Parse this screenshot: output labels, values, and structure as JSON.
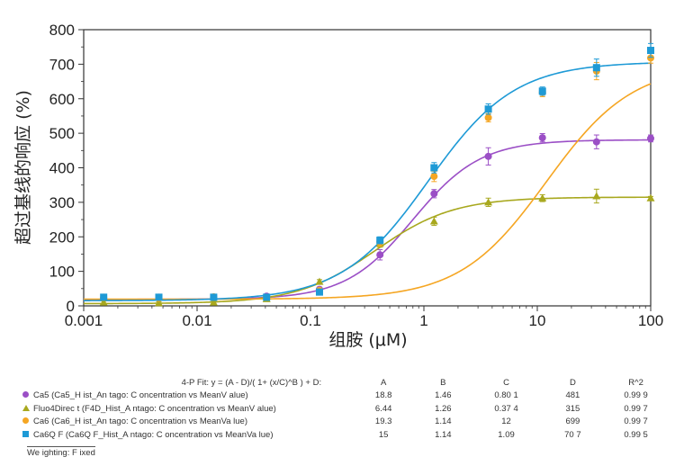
{
  "chart_data": {
    "type": "scatter",
    "xlabel": "组胺 (μM)",
    "ylabel": "超过基线的响应 (%)",
    "xscale": "log",
    "xlim": [
      0.001,
      100
    ],
    "ylim": [
      0,
      800
    ],
    "x_ticks": [
      "0.001",
      "0.01",
      "0.1",
      "1",
      "10",
      "100"
    ],
    "y_ticks": [
      "0",
      "100",
      "200",
      "300",
      "400",
      "500",
      "600",
      "700",
      "800"
    ],
    "grid": false,
    "series": [
      {
        "name": "Ca5 (Ca5_H ist_An tago: C oncentration vs MeanV alue)",
        "color": "#9b4fc6",
        "marker": "circle",
        "x": [
          0.0015,
          0.0046,
          0.014,
          0.041,
          0.12,
          0.41,
          1.23,
          3.7,
          11.1,
          33.3,
          100
        ],
        "y": [
          22,
          25,
          25,
          28,
          48,
          148,
          325,
          433,
          487,
          475,
          485
        ],
        "err": [
          6,
          6,
          6,
          6,
          6,
          15,
          12,
          25,
          12,
          20,
          10
        ],
        "fit": {
          "A": 18.8,
          "B": 1.46,
          "C": 0.801,
          "D": 481
        }
      },
      {
        "name": "Fluo4Direc t (F4D_Hist_A ntago: C oncentration vs MeanV alue)",
        "color": "#a8a81e",
        "marker": "triangle",
        "x": [
          0.0015,
          0.0046,
          0.014,
          0.041,
          0.12,
          0.41,
          1.23,
          3.7,
          11.1,
          33.3,
          100
        ],
        "y": [
          10,
          8,
          10,
          20,
          70,
          180,
          245,
          300,
          312,
          318,
          312
        ],
        "err": [
          4,
          4,
          4,
          5,
          6,
          10,
          12,
          12,
          10,
          20,
          5
        ],
        "fit": {
          "A": 6.44,
          "B": 1.26,
          "C": 0.374,
          "D": 315
        }
      },
      {
        "name": "Ca6 (Ca6_H ist_An tago: C oncentration vs MeanVa lue)",
        "color": "#f5a623",
        "marker": "circle",
        "x": [
          0.0015,
          0.0046,
          0.014,
          0.041,
          0.12,
          0.41,
          1.23,
          3.7,
          11.1,
          33.3,
          100
        ],
        "y": [
          25,
          22,
          26,
          25,
          45,
          185,
          375,
          545,
          618,
          680,
          718
        ],
        "err": [
          6,
          6,
          6,
          6,
          6,
          12,
          15,
          12,
          12,
          25,
          15
        ],
        "fit": {
          "A": 19.3,
          "B": 1.14,
          "C": 12,
          "D": 699
        }
      },
      {
        "name": "Ca6Q F (Ca6Q F_Hist_A ntago: C oncentration vs MeanVa lue)",
        "color": "#1e9ad6",
        "marker": "square",
        "x": [
          0.0015,
          0.0046,
          0.014,
          0.041,
          0.12,
          0.41,
          1.23,
          3.7,
          11.1,
          33.3,
          100
        ],
        "y": [
          25,
          25,
          25,
          25,
          40,
          190,
          400,
          570,
          622,
          690,
          740
        ],
        "err": [
          6,
          6,
          6,
          6,
          6,
          10,
          15,
          15,
          12,
          25,
          20
        ],
        "fit": {
          "A": 15,
          "B": 1.14,
          "C": 1.09,
          "D": 707
        }
      }
    ]
  },
  "fit_table": {
    "equation": "4-P Fit: y = (A - D)/( 1+ (x/C)^B ) + D:",
    "headers": [
      "A",
      "B",
      "C",
      "D",
      "R^2"
    ],
    "rows": [
      {
        "name": "Ca5  (Ca5_H ist_An tago: C oncentration vs MeanV alue)",
        "A": "18.8",
        "B": "1.46",
        "C": "0.80 1",
        "D": "481",
        "R2": "0.99 9"
      },
      {
        "name": "Fluo4Direc t (F4D_Hist_A ntago: C oncentration vs MeanV alue)",
        "A": "6.44",
        "B": "1.26",
        "C": "0.37 4",
        "D": "315",
        "R2": "0.99 7"
      },
      {
        "name": "Ca6  (Ca6_H ist_An tago: C oncentration vs MeanVa lue)",
        "A": "19.3",
        "B": "1.14",
        "C": "12",
        "D": "699",
        "R2": "0.99 7"
      },
      {
        "name": "Ca6Q F (Ca6Q F_Hist_A ntago: C oncentration vs MeanVa lue)",
        "A": "15",
        "B": "1.14",
        "C": "1.09",
        "D": "70 7",
        "R2": "0.99 5"
      }
    ],
    "weighting": "We ighting: F ixed"
  }
}
